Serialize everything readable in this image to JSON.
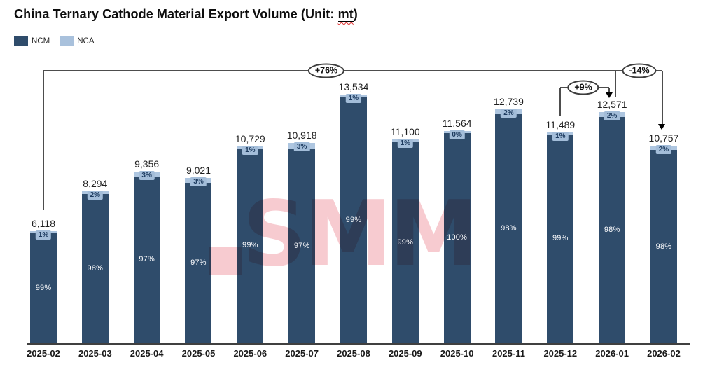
{
  "title": {
    "prefix": "China Ternary Cathode Material Export Volume (Unit: ",
    "unit": "mt",
    "suffix": ")"
  },
  "legend": [
    {
      "label": "NCM",
      "color": "#2f4c6b"
    },
    {
      "label": "NCA",
      "color": "#a9c1dc"
    }
  ],
  "watermark": {
    "text": "SMM",
    "color": "#f7cbd0"
  },
  "chart_data": {
    "type": "bar",
    "stacked": true,
    "title": "China Ternary Cathode Material Export Volume",
    "unit": "mt",
    "grid": false,
    "legend_position": "top-left",
    "ylim": [
      0,
      14000
    ],
    "categories": [
      "2025-02",
      "2025-03",
      "2025-04",
      "2025-05",
      "2025-06",
      "2025-07",
      "2025-08",
      "2025-09",
      "2025-10",
      "2025-11",
      "2025-12",
      "2026-01",
      "2026-02"
    ],
    "totals": [
      6118,
      8294,
      9356,
      9021,
      10729,
      10918,
      13534,
      11100,
      11564,
      12739,
      11489,
      12571,
      10757
    ],
    "total_labels": [
      "6,118",
      "8,294",
      "9,356",
      "9,021",
      "10,729",
      "10,918",
      "13,534",
      "11,100",
      "11,564",
      "12,739",
      "11,489",
      "12,571",
      "10,757"
    ],
    "series": [
      {
        "name": "NCM",
        "color": "#2f4c6b",
        "share_pct": [
          99,
          98,
          97,
          97,
          99,
          97,
          99,
          99,
          100,
          98,
          99,
          98,
          98
        ],
        "share_labels": [
          "99%",
          "98%",
          "97%",
          "97%",
          "99%",
          "97%",
          "99%",
          "99%",
          "100%",
          "98%",
          "99%",
          "98%",
          "98%"
        ]
      },
      {
        "name": "NCA",
        "color": "#aec6e0",
        "share_pct": [
          1,
          2,
          3,
          3,
          1,
          3,
          1,
          1,
          0,
          2,
          1,
          2,
          2
        ],
        "share_labels": [
          "1%",
          "2%",
          "3%",
          "3%",
          "1%",
          "3%",
          "1%",
          "1%",
          "0%",
          "2%",
          "1%",
          "2%",
          "2%"
        ]
      }
    ],
    "annotations": [
      {
        "label": "+76%",
        "from": "2025-02",
        "to": "2026-02"
      },
      {
        "label": "+9%",
        "from": "2025-12",
        "to": "2026-01"
      },
      {
        "label": "-14%",
        "from": "2026-01",
        "to": "2026-02"
      }
    ]
  }
}
